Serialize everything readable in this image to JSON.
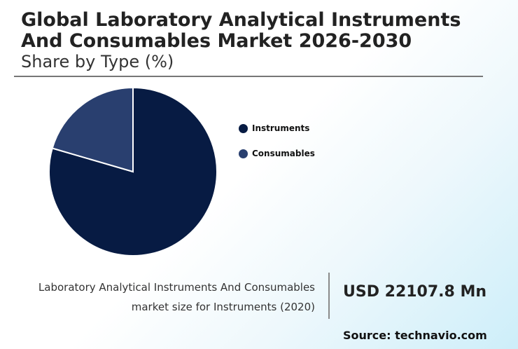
{
  "header": {
    "title": "Global Laboratory Analytical Instruments And Consumables Market 2026-2030",
    "subtitle": "Share by Type (%)"
  },
  "chart_data": {
    "type": "pie",
    "categories": [
      "Instruments",
      "Consumables"
    ],
    "values": [
      79.5,
      20.5
    ],
    "colors": [
      "#071b43",
      "#293f6f"
    ],
    "legend": "right"
  },
  "stat": {
    "label_line1": "Laboratory Analytical Instruments And Consumables",
    "label_line2": "market size for Instruments (2020)",
    "value": "USD 22107.8 Mn"
  },
  "source": "Source: technavio.com"
}
